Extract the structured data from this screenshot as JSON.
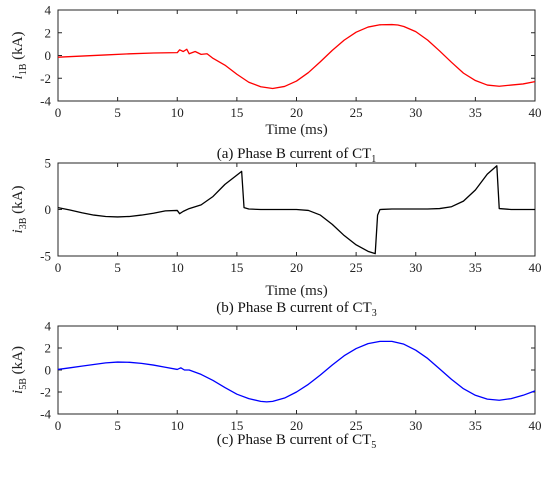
{
  "chart_data": [
    {
      "type": "line",
      "ylabel_var": "i",
      "ylabel_sub": "1B",
      "ylabel_unit": " (kA)",
      "xlabel": "Time (ms)",
      "caption_text": "(a) Phase B current of CT",
      "caption_sub": "1",
      "xlim": [
        0,
        40
      ],
      "ylim": [
        -4,
        4
      ],
      "xticks": [
        "0",
        "5",
        "10",
        "15",
        "20",
        "25",
        "30",
        "35",
        "40"
      ],
      "yticks": [
        "-4",
        "-2",
        "0",
        "2",
        "4"
      ],
      "color": "#ff0000",
      "x": [
        0,
        2,
        4,
        6,
        8,
        10,
        10.2,
        10.5,
        10.8,
        11,
        11.5,
        12,
        12.5,
        13,
        14,
        15,
        16,
        17,
        18,
        19,
        20,
        21,
        22,
        23,
        24,
        25,
        26,
        27,
        28,
        28.5,
        29,
        30,
        31,
        32,
        33,
        34,
        35,
        36,
        37,
        38,
        39,
        40
      ],
      "y": [
        -0.15,
        -0.05,
        0.05,
        0.15,
        0.22,
        0.25,
        0.5,
        0.35,
        0.55,
        0.15,
        0.35,
        0.1,
        0.15,
        -0.25,
        -0.85,
        -1.65,
        -2.35,
        -2.75,
        -2.9,
        -2.72,
        -2.25,
        -1.5,
        -0.55,
        0.45,
        1.35,
        2.05,
        2.5,
        2.7,
        2.72,
        2.68,
        2.55,
        2.1,
        1.35,
        0.4,
        -0.6,
        -1.55,
        -2.2,
        -2.6,
        -2.7,
        -2.6,
        -2.5,
        -2.3
      ]
    },
    {
      "type": "line",
      "ylabel_var": "i",
      "ylabel_sub": "3B",
      "ylabel_unit": " (kA)",
      "xlabel": "Time (ms)",
      "caption_text": "(b) Phase B current of CT",
      "caption_sub": "3",
      "xlim": [
        0,
        40
      ],
      "ylim": [
        -5,
        5
      ],
      "xticks": [
        "0",
        "5",
        "10",
        "15",
        "20",
        "25",
        "30",
        "35",
        "40"
      ],
      "yticks": [
        "-5",
        "0",
        "5"
      ],
      "color": "#000000",
      "x": [
        0,
        1,
        2,
        3,
        4,
        5,
        6,
        7,
        8,
        9,
        10,
        10.2,
        10.5,
        11,
        12,
        13,
        14,
        15,
        15.4,
        15.6,
        16,
        17,
        18,
        19,
        20,
        21,
        22,
        23,
        24,
        25,
        26,
        26.6,
        26.8,
        27,
        28,
        29,
        30,
        31,
        32,
        33,
        34,
        35,
        36,
        36.8,
        37,
        38,
        39,
        40
      ],
      "y": [
        0.2,
        -0.05,
        -0.35,
        -0.6,
        -0.75,
        -0.8,
        -0.75,
        -0.6,
        -0.4,
        -0.15,
        -0.1,
        -0.45,
        -0.2,
        0.1,
        0.5,
        1.4,
        2.7,
        3.7,
        4.1,
        0.2,
        0.05,
        0.0,
        0.0,
        0.0,
        0.0,
        -0.1,
        -0.6,
        -1.6,
        -2.8,
        -3.8,
        -4.5,
        -4.75,
        -0.6,
        0.0,
        0.05,
        0.05,
        0.05,
        0.05,
        0.1,
        0.3,
        0.9,
        2.1,
        3.8,
        4.7,
        0.1,
        0.0,
        0.0,
        0.0
      ]
    },
    {
      "type": "line",
      "ylabel_var": "i",
      "ylabel_sub": "5B",
      "ylabel_unit": " (kA)",
      "xlabel": "",
      "caption_text": "(c) Phase B current of CT",
      "caption_sub": "5",
      "xlim": [
        0,
        40
      ],
      "ylim": [
        -4,
        4
      ],
      "xticks": [
        "0",
        "5",
        "10",
        "15",
        "20",
        "25",
        "30",
        "35",
        "40"
      ],
      "yticks": [
        "-4",
        "-2",
        "0",
        "2",
        "4"
      ],
      "color": "#0000ff",
      "x": [
        0,
        1,
        2,
        3,
        4,
        5,
        6,
        7,
        8,
        9,
        10,
        10.3,
        10.6,
        11,
        12,
        13,
        14,
        15,
        16,
        17,
        17.5,
        18,
        19,
        20,
        21,
        22,
        23,
        24,
        25,
        26,
        27,
        28,
        29,
        30,
        31,
        32,
        33,
        34,
        35,
        36,
        37,
        38,
        39,
        40
      ],
      "y": [
        0.05,
        0.2,
        0.35,
        0.5,
        0.65,
        0.72,
        0.7,
        0.6,
        0.45,
        0.25,
        0.05,
        0.2,
        0.0,
        0.0,
        -0.4,
        -0.95,
        -1.6,
        -2.2,
        -2.6,
        -2.85,
        -2.9,
        -2.85,
        -2.55,
        -2.0,
        -1.3,
        -0.45,
        0.45,
        1.3,
        1.95,
        2.4,
        2.6,
        2.6,
        2.35,
        1.8,
        1.05,
        0.1,
        -0.85,
        -1.7,
        -2.3,
        -2.65,
        -2.75,
        -2.6,
        -2.3,
        -1.9
      ]
    }
  ]
}
